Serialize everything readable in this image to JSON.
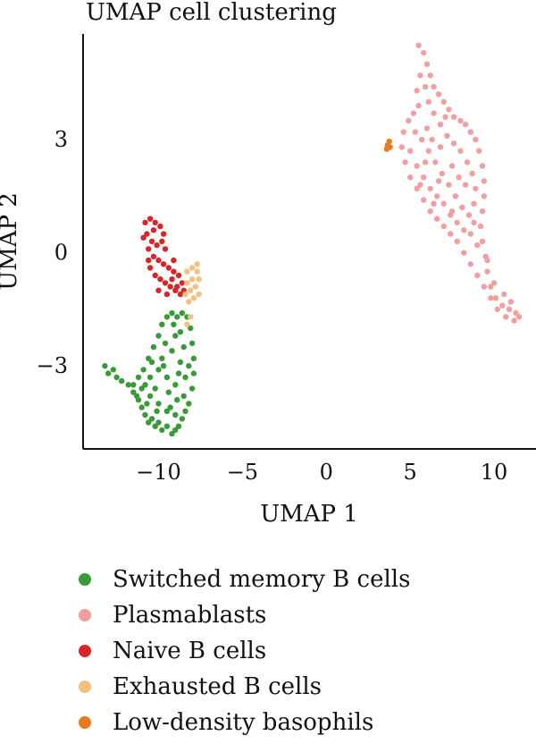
{
  "chart_data": {
    "type": "scatter",
    "title": "UMAP cell clustering",
    "xlabel": "UMAP 1",
    "ylabel": "UMAP 2",
    "xlim": [
      -14.5,
      12.5
    ],
    "ylim": [
      -5.2,
      5.8
    ],
    "xticks": [
      -10,
      -5,
      0,
      5,
      10
    ],
    "yticks": [
      -3,
      0,
      3
    ],
    "xtick_labels": [
      "−10",
      "−5",
      "0",
      "5",
      "10"
    ],
    "ytick_labels": [
      "−3",
      "0",
      "3"
    ],
    "grid": false,
    "legend_position": "bottom",
    "series": [
      {
        "name": "Switched memory B cells",
        "color": "#3a9a3a",
        "points": [
          [
            -13.2,
            -3.0
          ],
          [
            -13.0,
            -3.2
          ],
          [
            -12.7,
            -3.1
          ],
          [
            -12.5,
            -3.3
          ],
          [
            -12.2,
            -3.4
          ],
          [
            -11.8,
            -3.5
          ],
          [
            -11.5,
            -3.7
          ],
          [
            -11.2,
            -3.9
          ],
          [
            -11.0,
            -4.1
          ],
          [
            -10.8,
            -4.3
          ],
          [
            -10.6,
            -4.5
          ],
          [
            -10.4,
            -4.4
          ],
          [
            -10.2,
            -4.6
          ],
          [
            -10.0,
            -4.5
          ],
          [
            -9.8,
            -4.7
          ],
          [
            -9.5,
            -4.6
          ],
          [
            -9.2,
            -4.8
          ],
          [
            -9.0,
            -4.7
          ],
          [
            -8.8,
            -4.6
          ],
          [
            -8.6,
            -4.4
          ],
          [
            -8.4,
            -4.2
          ],
          [
            -8.2,
            -4.0
          ],
          [
            -8.0,
            -3.6
          ],
          [
            -7.9,
            -3.2
          ],
          [
            -7.9,
            -2.8
          ],
          [
            -8.0,
            -2.4
          ],
          [
            -8.1,
            -2.0
          ],
          [
            -8.3,
            -1.7
          ],
          [
            -8.6,
            -1.6
          ],
          [
            -8.9,
            -1.7
          ],
          [
            -9.2,
            -1.6
          ],
          [
            -9.5,
            -1.7
          ],
          [
            -9.8,
            -1.9
          ],
          [
            -10.0,
            -2.2
          ],
          [
            -10.3,
            -2.5
          ],
          [
            -10.6,
            -2.8
          ],
          [
            -10.9,
            -3.1
          ],
          [
            -11.2,
            -3.3
          ],
          [
            -11.5,
            -3.5
          ],
          [
            -11.0,
            -3.6
          ],
          [
            -10.5,
            -3.8
          ],
          [
            -10.0,
            -4.0
          ],
          [
            -9.5,
            -4.2
          ],
          [
            -9.0,
            -4.3
          ],
          [
            -8.5,
            -3.8
          ],
          [
            -9.0,
            -3.5
          ],
          [
            -9.5,
            -3.3
          ],
          [
            -10.0,
            -3.1
          ],
          [
            -10.5,
            -3.3
          ],
          [
            -9.8,
            -2.8
          ],
          [
            -9.2,
            -2.6
          ],
          [
            -8.7,
            -2.9
          ],
          [
            -8.4,
            -3.3
          ],
          [
            -8.9,
            -3.9
          ],
          [
            -9.4,
            -3.7
          ],
          [
            -10.2,
            -3.6
          ],
          [
            -10.8,
            -3.5
          ],
          [
            -9.6,
            -2.4
          ],
          [
            -9.0,
            -2.2
          ],
          [
            -8.5,
            -2.5
          ],
          [
            -8.2,
            -3.0
          ],
          [
            -9.3,
            -4.1
          ],
          [
            -10.1,
            -4.2
          ],
          [
            -10.7,
            -4.0
          ],
          [
            -11.3,
            -3.8
          ],
          [
            -9.7,
            -3.0
          ],
          [
            -8.8,
            -3.2
          ],
          [
            -9.1,
            -1.9
          ],
          [
            -8.7,
            -2.1
          ],
          [
            -10.4,
            -2.9
          ]
        ]
      },
      {
        "name": "Plasmablasts",
        "color": "#f0a0a0",
        "points": [
          [
            5.5,
            5.5
          ],
          [
            5.8,
            5.3
          ],
          [
            6.0,
            5.0
          ],
          [
            6.2,
            4.7
          ],
          [
            6.4,
            4.4
          ],
          [
            6.7,
            4.2
          ],
          [
            7.0,
            4.0
          ],
          [
            7.3,
            3.8
          ],
          [
            7.6,
            3.6
          ],
          [
            8.0,
            3.5
          ],
          [
            8.3,
            3.4
          ],
          [
            8.6,
            3.2
          ],
          [
            8.9,
            3.0
          ],
          [
            9.1,
            2.7
          ],
          [
            9.3,
            2.3
          ],
          [
            9.4,
            1.9
          ],
          [
            9.4,
            1.5
          ],
          [
            9.3,
            1.1
          ],
          [
            9.2,
            0.7
          ],
          [
            9.3,
            0.3
          ],
          [
            9.5,
            -0.1
          ],
          [
            9.6,
            -0.5
          ],
          [
            9.8,
            -0.9
          ],
          [
            10.1,
            -1.2
          ],
          [
            10.5,
            -1.4
          ],
          [
            10.9,
            -1.5
          ],
          [
            11.3,
            -1.6
          ],
          [
            11.5,
            -1.7
          ],
          [
            11.2,
            -1.8
          ],
          [
            10.7,
            -1.7
          ],
          [
            10.2,
            -1.5
          ],
          [
            9.8,
            -1.2
          ],
          [
            9.4,
            -0.9
          ],
          [
            9.0,
            -0.6
          ],
          [
            8.6,
            -0.3
          ],
          [
            8.2,
            0.0
          ],
          [
            7.8,
            0.3
          ],
          [
            7.4,
            0.5
          ],
          [
            7.0,
            0.7
          ],
          [
            6.6,
            0.9
          ],
          [
            6.2,
            1.1
          ],
          [
            5.8,
            1.4
          ],
          [
            5.4,
            1.7
          ],
          [
            5.0,
            2.0
          ],
          [
            4.7,
            2.4
          ],
          [
            4.5,
            2.8
          ],
          [
            4.6,
            3.2
          ],
          [
            4.9,
            3.5
          ],
          [
            5.2,
            3.7
          ],
          [
            5.5,
            3.9
          ],
          [
            5.4,
            4.3
          ],
          [
            5.6,
            4.7
          ],
          [
            5.9,
            4.4
          ],
          [
            6.1,
            4.0
          ],
          [
            6.4,
            3.7
          ],
          [
            6.8,
            3.4
          ],
          [
            7.2,
            3.1
          ],
          [
            7.6,
            2.9
          ],
          [
            8.0,
            2.7
          ],
          [
            8.4,
            2.4
          ],
          [
            8.7,
            2.1
          ],
          [
            8.9,
            1.7
          ],
          [
            8.8,
            1.3
          ],
          [
            8.5,
            1.0
          ],
          [
            8.1,
            1.2
          ],
          [
            7.7,
            1.5
          ],
          [
            7.3,
            1.8
          ],
          [
            6.9,
            2.1
          ],
          [
            6.5,
            2.4
          ],
          [
            6.1,
            2.7
          ],
          [
            5.7,
            3.0
          ],
          [
            5.3,
            3.2
          ],
          [
            5.0,
            2.7
          ],
          [
            5.4,
            2.3
          ],
          [
            5.8,
            2.0
          ],
          [
            6.2,
            1.7
          ],
          [
            6.6,
            1.5
          ],
          [
            7.0,
            1.3
          ],
          [
            7.4,
            1.0
          ],
          [
            7.8,
            0.8
          ],
          [
            8.2,
            0.6
          ],
          [
            8.6,
            0.5
          ],
          [
            9.0,
            0.2
          ],
          [
            9.6,
            -0.2
          ],
          [
            10.0,
            -0.8
          ],
          [
            10.6,
            -1.1
          ],
          [
            11.0,
            -1.3
          ],
          [
            6.0,
            3.3
          ],
          [
            6.8,
            2.8
          ],
          [
            7.5,
            2.3
          ],
          [
            8.3,
            1.8
          ],
          [
            7.1,
            3.6
          ],
          [
            6.3,
            3.0
          ],
          [
            5.9,
            2.4
          ],
          [
            6.7,
            1.9
          ],
          [
            7.9,
            2.0
          ],
          [
            8.8,
            0.8
          ],
          [
            7.5,
            1.1
          ],
          [
            6.4,
            1.3
          ],
          [
            5.6,
            1.8
          ]
        ]
      },
      {
        "name": "Naive B cells",
        "color": "#d62728",
        "points": [
          [
            -10.8,
            0.8
          ],
          [
            -10.5,
            0.9
          ],
          [
            -10.2,
            0.8
          ],
          [
            -9.9,
            0.7
          ],
          [
            -9.7,
            0.5
          ],
          [
            -9.8,
            0.3
          ],
          [
            -10.1,
            0.2
          ],
          [
            -10.4,
            0.3
          ],
          [
            -10.7,
            0.5
          ],
          [
            -10.9,
            0.4
          ],
          [
            -10.6,
            0.1
          ],
          [
            -10.3,
            -0.1
          ],
          [
            -10.0,
            -0.2
          ],
          [
            -9.7,
            -0.3
          ],
          [
            -9.4,
            -0.4
          ],
          [
            -9.1,
            -0.5
          ],
          [
            -8.8,
            -0.6
          ],
          [
            -8.6,
            -0.8
          ],
          [
            -8.5,
            -1.0
          ],
          [
            -8.7,
            -1.1
          ],
          [
            -9.0,
            -1.0
          ],
          [
            -9.3,
            -0.9
          ],
          [
            -9.6,
            -0.8
          ],
          [
            -9.9,
            -0.7
          ],
          [
            -10.2,
            -0.6
          ],
          [
            -10.5,
            -0.4
          ],
          [
            -10.0,
            -1.0
          ],
          [
            -9.5,
            -1.1
          ],
          [
            -9.2,
            -0.7
          ],
          [
            -10.3,
            0.6
          ],
          [
            -9.6,
            0.1
          ],
          [
            -9.1,
            -0.2
          ],
          [
            -10.6,
            -0.2
          ],
          [
            -8.9,
            -0.9
          ]
        ]
      },
      {
        "name": "Exhausted B cells",
        "color": "#f5c080",
        "points": [
          [
            -8.3,
            -0.5
          ],
          [
            -8.0,
            -0.4
          ],
          [
            -7.7,
            -0.5
          ],
          [
            -7.6,
            -0.7
          ],
          [
            -7.8,
            -0.9
          ],
          [
            -8.1,
            -1.0
          ],
          [
            -8.4,
            -1.1
          ],
          [
            -8.2,
            -1.3
          ],
          [
            -7.9,
            -1.2
          ],
          [
            -7.6,
            -1.1
          ],
          [
            -8.0,
            -0.7
          ],
          [
            -8.3,
            -0.8
          ],
          [
            -7.7,
            -0.3
          ],
          [
            -8.1,
            -1.7
          ],
          [
            -8.3,
            -1.9
          ]
        ]
      },
      {
        "name": "Low-density basophils",
        "color": "#e87a20",
        "points": [
          [
            3.65,
            2.85
          ],
          [
            3.75,
            2.95
          ],
          [
            3.6,
            2.75
          ],
          [
            3.8,
            2.8
          ]
        ]
      }
    ]
  }
}
